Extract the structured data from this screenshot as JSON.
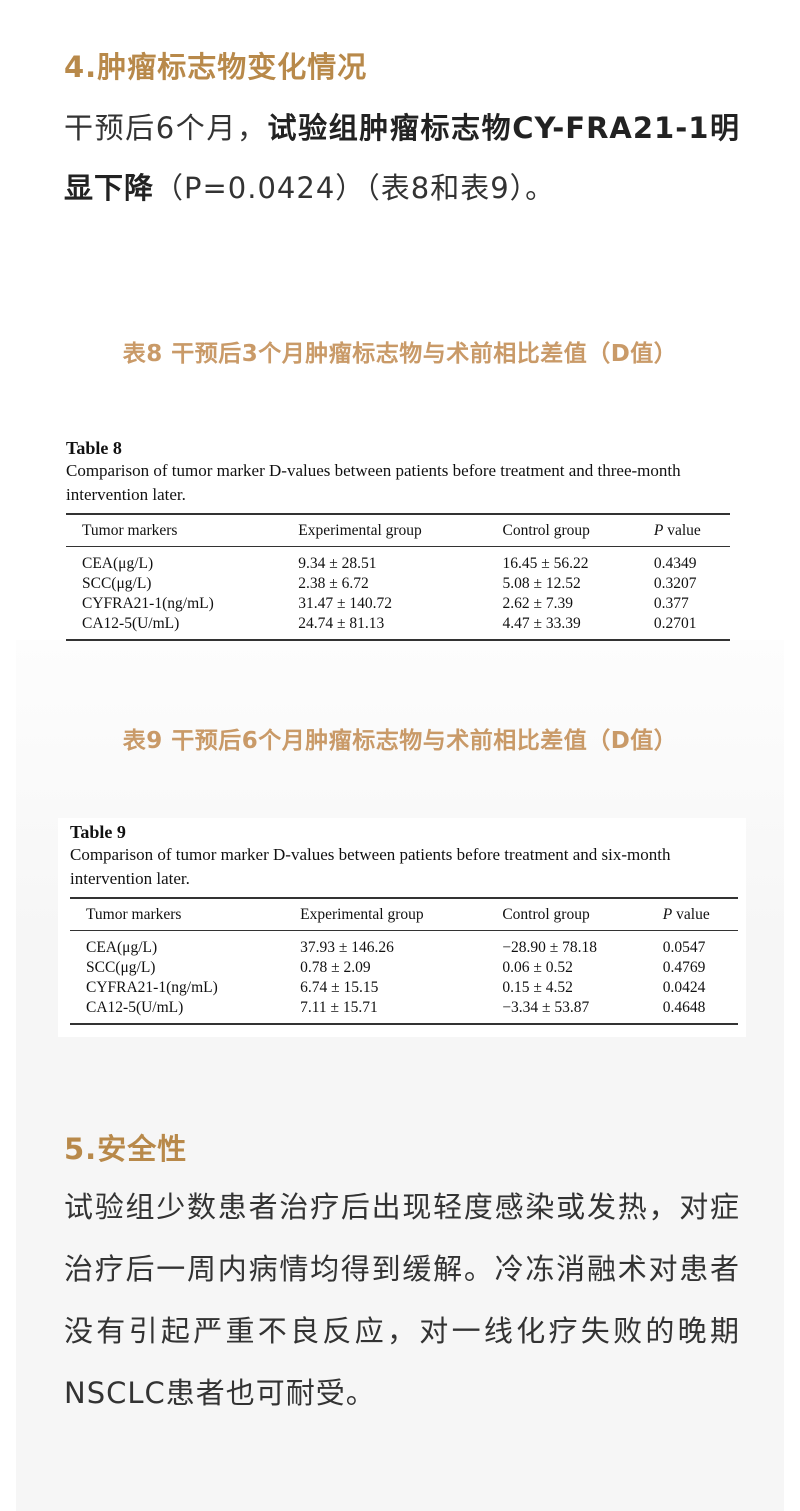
{
  "colors": {
    "heading": "#b8894a",
    "caption": "#c99a68",
    "panel_bg": "#f6f6f6"
  },
  "section4": {
    "heading": "4.肿瘤标志物变化情况",
    "para_plain1": "干预后6个月，",
    "para_bold": "试验组肿瘤标志物CY-FRA21-1明显下降",
    "para_plain2": "（P=0.0424）（表8和表9）。"
  },
  "table8": {
    "caption_cn": "表8 干预后3个月肿瘤标志物与术前相比差值（D值）",
    "title": "Table 8",
    "description": "Comparison of tumor marker D-values between patients before treatment and three-month intervention later.",
    "headers": [
      "Tumor markers",
      "Experimental group",
      "Control group",
      "value"
    ],
    "p_label": "P",
    "rows": [
      [
        "CEA(μg/L)",
        "9.34 ± 28.51",
        "16.45 ± 56.22",
        "0.4349"
      ],
      [
        "SCC(μg/L)",
        "2.38 ± 6.72",
        "5.08 ± 12.52",
        "0.3207"
      ],
      [
        "CYFRA21-1(ng/mL)",
        "31.47 ± 140.72",
        "2.62 ± 7.39",
        "0.377"
      ],
      [
        "CA12-5(U/mL)",
        "24.74 ± 81.13",
        "4.47 ± 33.39",
        "0.2701"
      ]
    ]
  },
  "table9": {
    "caption_cn": "表9 干预后6个月肿瘤标志物与术前相比差值（D值）",
    "title": "Table 9",
    "description": "Comparison of tumor marker D-values between patients before treatment and six-month intervention later.",
    "headers": [
      "Tumor markers",
      "Experimental group",
      "Control group",
      "value"
    ],
    "p_label": "P",
    "rows": [
      [
        "CEA(μg/L)",
        "37.93 ± 146.26",
        "−28.90 ± 78.18",
        "0.0547"
      ],
      [
        "SCC(μg/L)",
        "0.78 ± 2.09",
        "0.06 ± 0.52",
        "0.4769"
      ],
      [
        "CYFRA21-1(ng/mL)",
        "6.74 ± 15.15",
        "0.15 ± 4.52",
        "0.0424"
      ],
      [
        "CA12-5(U/mL)",
        "7.11 ± 15.71",
        "−3.34 ± 53.87",
        "0.4648"
      ]
    ]
  },
  "section5": {
    "heading": "5.安全性",
    "para": "试验组少数患者治疗后出现轻度感染或发热，对症治疗后一周内病情均得到缓解。冷冻消融术对患者没有引起严重不良反应，对一线化疗失败的晚期NSCLC患者也可耐受。"
  }
}
